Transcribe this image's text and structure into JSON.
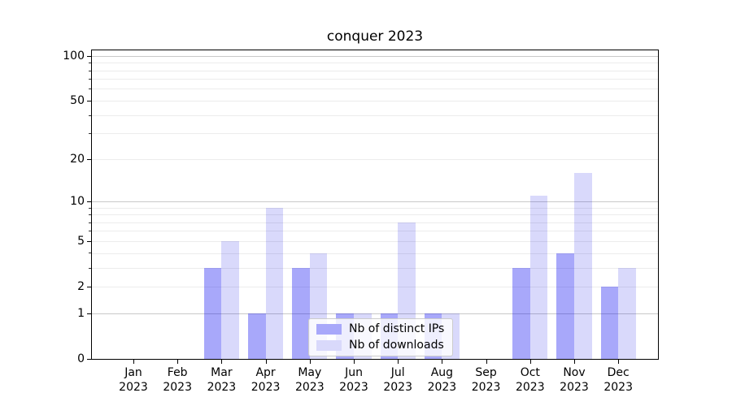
{
  "chart_data": {
    "type": "bar",
    "title": "conquer 2023",
    "categories": [
      "Jan 2023",
      "Feb 2023",
      "Mar 2023",
      "Apr 2023",
      "May 2023",
      "Jun 2023",
      "Jul 2023",
      "Aug 2023",
      "Sep 2023",
      "Oct 2023",
      "Nov 2023",
      "Dec 2023"
    ],
    "series": [
      {
        "name": "Nb of distinct IPs",
        "values": [
          0,
          0,
          3,
          1,
          3,
          1,
          1,
          1,
          0,
          3,
          4,
          2
        ],
        "fill": "rgba(0,0,240,0.34)",
        "legend_color": "#a8a8fa"
      },
      {
        "name": "Nb of downloads",
        "values": [
          0,
          0,
          5,
          9,
          4,
          1,
          7,
          1,
          0,
          11,
          16,
          3
        ],
        "fill": "rgba(0,0,230,0.15)",
        "legend_color": "#d9d9fb"
      }
    ],
    "yscale": "log1p",
    "yticks": [
      0,
      1,
      2,
      5,
      10,
      20,
      50,
      100
    ],
    "ylim": [
      0,
      112
    ],
    "xlabel": "",
    "ylabel": "",
    "grid": {
      "major_values": [
        1,
        10,
        100
      ],
      "minor_values": [
        2,
        3,
        4,
        5,
        6,
        7,
        8,
        9,
        20,
        30,
        40,
        50,
        60,
        70,
        80,
        90
      ],
      "major_color": "#c9c9c9",
      "minor_color": "#ececec"
    },
    "legend": {
      "entries": [
        "Nb of distinct IPs",
        "Nb of downloads"
      ],
      "position": "lower-center-inside"
    }
  },
  "colors": {
    "background": "#ffffff",
    "spine": "#000000",
    "bar_ips": "#a8a8fa",
    "bar_downloads": "#d9d9fb"
  }
}
